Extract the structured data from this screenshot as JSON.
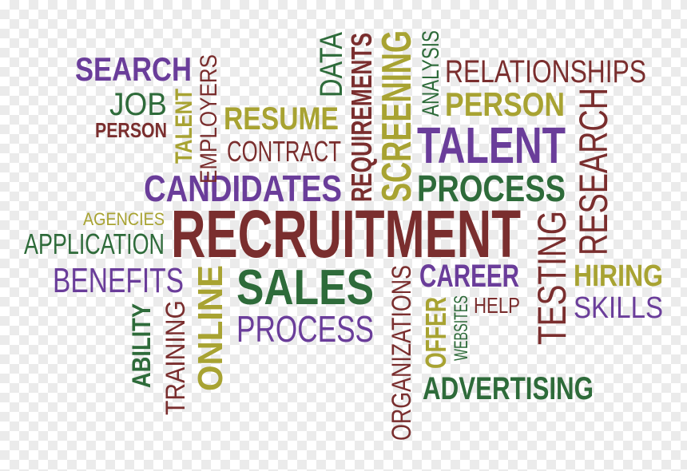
{
  "palette": {
    "purple": "#6a3d9a",
    "green": "#2e6b3a",
    "olive": "#a8a332",
    "maroon": "#7a2e2e"
  },
  "words": {
    "search": "SEARCH",
    "job": "JOB",
    "person_small": "PERSON",
    "talent_vertical": "TALENT",
    "employers": "EMPLOYERS",
    "resume": "RESUME",
    "contract": "CONTRACT",
    "data": "DATA",
    "requirements": "REQUIREMENTS",
    "screening": "SCREENING",
    "analysis": "ANALYSIS",
    "relationships": "RELATIONSHIPS",
    "person_large": "PERSON",
    "talent_large": "TALENT",
    "research": "RESEARCH",
    "candidates": "CANDIDATES",
    "process_green": "PROCESS",
    "agencies": "AGENCIES",
    "application": "APPLICATION",
    "recruitment": "RECRUITMENT",
    "testing": "TESTING",
    "benefits": "BENEFITS",
    "online": "ONLINE",
    "sales": "SALES",
    "organizations": "ORGANIZATIONS",
    "career": "CAREER",
    "hiring": "HIRING",
    "skills": "SKILLS",
    "ability": "ABILITY",
    "training": "TRAINING",
    "process_purple": "PROCESS",
    "offer": "OFFER",
    "websites": "WEBSITES",
    "help": "HELP",
    "advertising": "ADVERTISING"
  }
}
